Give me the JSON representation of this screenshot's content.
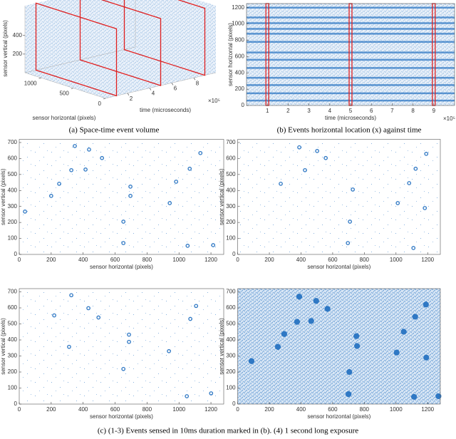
{
  "chart_data": [
    {
      "type": "scatter3d",
      "caption": "(a) Space-time event volume",
      "xlabel": "time (microseconds)",
      "ylabel": "sensor horizontal (pixels)",
      "zlabel": "sensor vertical (pixels)",
      "xlim": [
        0,
        10
      ],
      "xticks": [
        2,
        4,
        6,
        8
      ],
      "x_multiplier": "×10⁵",
      "ylim": [
        0,
        1250
      ],
      "yticks": [
        0,
        500,
        1000
      ],
      "zlim": [
        0,
        720
      ],
      "zticks": [
        200,
        400
      ],
      "slices": [
        1,
        5,
        9
      ],
      "slice_color": "#e02020",
      "color": "#2f78c4"
    },
    {
      "type": "raster",
      "caption": "(b) Events horizontal location (x) against time",
      "xlabel": "time (microseconds)",
      "ylabel": "sensor horizontal (pixels)",
      "xlim": [
        0,
        10
      ],
      "xticks": [
        1,
        2,
        3,
        4,
        5,
        6,
        7,
        8,
        9
      ],
      "x_multiplier": "×10⁵",
      "ylim": [
        0,
        1250
      ],
      "yticks": [
        0,
        200,
        400,
        600,
        800,
        1000,
        1200
      ],
      "bands": [
        1200,
        1080,
        1010,
        940,
        880,
        780,
        650,
        560,
        460,
        340,
        250,
        150,
        60
      ],
      "highlights": [
        1,
        5,
        9
      ],
      "highlight_color": "#e02020",
      "color": "#2f78c4"
    },
    {
      "type": "scatter",
      "xlabel": "sensor horizontal (pixels)",
      "ylabel": "sensor vertical (pixels)",
      "xlim": [
        0,
        1280
      ],
      "xticks": [
        0,
        200,
        400,
        600,
        800,
        1000,
        1200
      ],
      "ylim": [
        0,
        720
      ],
      "yticks": [
        0,
        100,
        200,
        300,
        400,
        500,
        600,
        700
      ],
      "x": [
        36,
        200,
        250,
        348,
        326,
        437,
        415,
        518,
        652,
        652,
        696,
        696,
        942,
        982,
        1067,
        1134,
        1054,
        1214
      ],
      "y": [
        268,
        366,
        442,
        678,
        527,
        656,
        531,
        603,
        205,
        71,
        424,
        366,
        321,
        455,
        536,
        634,
        54,
        58
      ],
      "noise": "sparse",
      "color": "#2f78c4"
    },
    {
      "type": "scatter",
      "xlabel": "sensor horizontal (pixels)",
      "ylabel": "sensor vertical (pixels)",
      "xlim": [
        0,
        1280
      ],
      "xticks": [
        0,
        200,
        400,
        600,
        800,
        1000,
        1200
      ],
      "ylim": [
        0,
        720
      ],
      "yticks": [
        0,
        100,
        200,
        300,
        400,
        500,
        600,
        700
      ],
      "x": [
        389,
        502,
        556,
        425,
        727,
        1191,
        1124,
        1083,
        1011,
        1182,
        709,
        696,
        1110,
        272
      ],
      "y": [
        670,
        647,
        603,
        527,
        406,
        629,
        536,
        446,
        321,
        290,
        205,
        71,
        40,
        442
      ],
      "noise": "sparse",
      "color": "#2f78c4"
    },
    {
      "type": "scatter",
      "xlabel": "sensor horizontal (pixels)",
      "ylabel": "sensor vertical (pixels)",
      "xlim": [
        0,
        1280
      ],
      "xticks": [
        0,
        200,
        400,
        600,
        800,
        1000,
        1200
      ],
      "ylim": [
        0,
        720
      ],
      "yticks": [
        0,
        100,
        200,
        300,
        400,
        500,
        600,
        700
      ],
      "x": [
        312,
        219,
        326,
        433,
        496,
        687,
        687,
        937,
        1071,
        1107,
        652,
        1049,
        1201
      ],
      "y": [
        357,
        553,
        679,
        598,
        540,
        433,
        388,
        330,
        531,
        612,
        219,
        49,
        67
      ],
      "noise": "sparse",
      "color": "#2f78c4"
    },
    {
      "type": "scatter",
      "xlabel": "sensor horizontal (pixels)",
      "ylabel": "sensor vertical (pixels)",
      "xlim": [
        0,
        1280
      ],
      "xticks": [
        0,
        200,
        400,
        600,
        800,
        1000,
        1200
      ],
      "ylim": [
        0,
        720
      ],
      "yticks": [
        0,
        100,
        200,
        300,
        400,
        500,
        600,
        700
      ],
      "x": [
        87,
        254,
        294,
        389,
        496,
        567,
        464,
        375,
        750,
        754,
        1004,
        1049,
        1121,
        1189,
        1191,
        705,
        700,
        1114,
        1268
      ],
      "y": [
        268,
        357,
        437,
        670,
        643,
        594,
        518,
        513,
        424,
        362,
        321,
        451,
        545,
        621,
        290,
        200,
        62,
        45,
        49
      ],
      "noise": "dense",
      "color": "#2f78c4"
    }
  ],
  "caption": "(c) (1-3) Events sensed in 10ms duration marked in (b). (4) 1 second long exposure"
}
